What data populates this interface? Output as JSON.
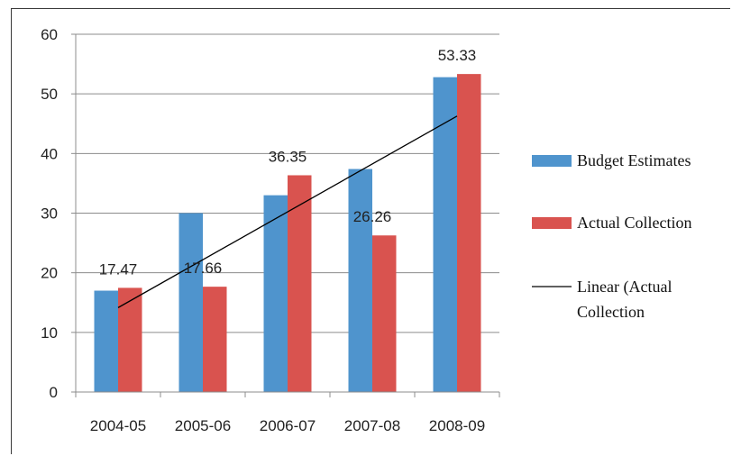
{
  "chart_data": {
    "type": "bar",
    "categories": [
      "2004-05",
      "2005-06",
      "2006-07",
      "2007-08",
      "2008-09"
    ],
    "series": [
      {
        "name": "Budget Estimates",
        "values": [
          17,
          30,
          33,
          37.4,
          52.8
        ],
        "color": "#4f94cd"
      },
      {
        "name": "Actual Collection",
        "values": [
          17.47,
          17.66,
          36.35,
          26.26,
          53.33
        ],
        "color": "#d9534f"
      }
    ],
    "data_labels": [
      "17.47",
      "17.66",
      "36.35",
      "26.26",
      "53.33"
    ],
    "trendline": {
      "name": "Linear (Actual Collection",
      "series": "Actual Collection",
      "color": "#000000"
    },
    "yticks": [
      "0",
      "10",
      "20",
      "30",
      "40",
      "50",
      "60"
    ],
    "ylim": [
      0,
      60
    ],
    "grid": true,
    "legend_position": "right"
  }
}
